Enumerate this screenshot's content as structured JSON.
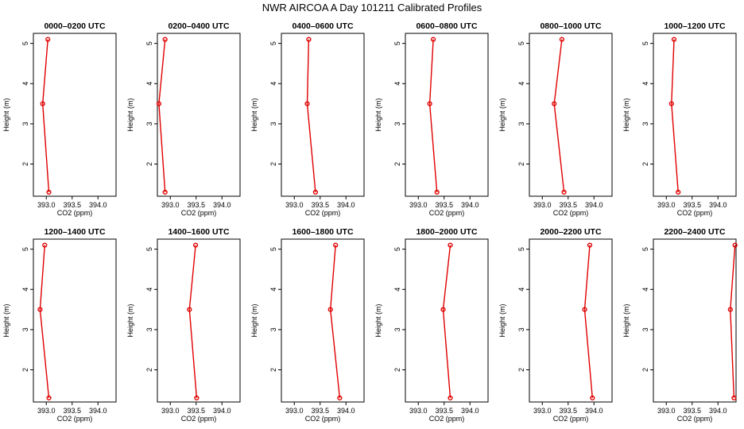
{
  "title": "NWR AIRCOA A  Day 101211  Calibrated Profiles",
  "chart_data": {
    "type": "line",
    "xlabel": "CO2 (ppm)",
    "ylabel": "Height (m)",
    "xlim": [
      392.75,
      394.35
    ],
    "ylim": [
      1.2,
      5.25
    ],
    "xticks": [
      393.0,
      393.5,
      394.0
    ],
    "xtick_labels": [
      "393.0",
      "393.5",
      "394.0"
    ],
    "yticks": [
      2,
      3,
      4,
      5
    ],
    "ytick_labels": [
      "2",
      "3",
      "4",
      "5"
    ],
    "heights": [
      5.1,
      3.5,
      1.3
    ],
    "panels": [
      {
        "title": "0000–0200 UTC",
        "co2": [
          393.03,
          392.93,
          393.05
        ]
      },
      {
        "title": "0200–0400 UTC",
        "co2": [
          392.9,
          392.78,
          392.9
        ]
      },
      {
        "title": "0400–0600 UTC",
        "co2": [
          393.28,
          393.25,
          393.41
        ]
      },
      {
        "title": "0600–0800 UTC",
        "co2": [
          393.29,
          393.22,
          393.36
        ]
      },
      {
        "title": "0800–1000 UTC",
        "co2": [
          393.38,
          393.23,
          393.42
        ]
      },
      {
        "title": "1000–1200 UTC",
        "co2": [
          393.15,
          393.1,
          393.23
        ]
      },
      {
        "title": "1200–1400 UTC",
        "co2": [
          392.97,
          392.88,
          393.05
        ]
      },
      {
        "title": "1400–1600 UTC",
        "co2": [
          393.49,
          393.37,
          393.51
        ]
      },
      {
        "title": "1600–1800 UTC",
        "co2": [
          393.8,
          393.7,
          393.88
        ]
      },
      {
        "title": "1800–2000 UTC",
        "co2": [
          393.62,
          393.48,
          393.62
        ]
      },
      {
        "title": "2000–2200 UTC",
        "co2": [
          393.92,
          393.82,
          393.97
        ]
      },
      {
        "title": "2200–2400 UTC",
        "co2": [
          394.33,
          394.24,
          394.31
        ]
      }
    ]
  }
}
